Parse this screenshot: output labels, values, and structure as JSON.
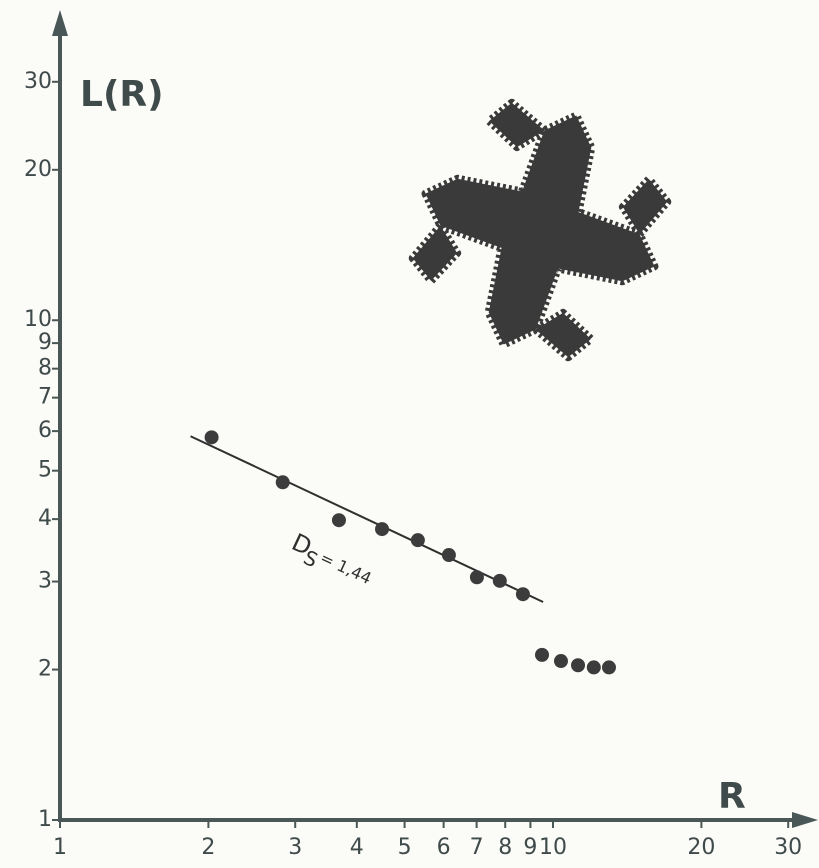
{
  "chart_data": {
    "type": "scatter",
    "x_label": "R",
    "y_label": "L(R)",
    "log_x": true,
    "log_y": true,
    "xlim": [
      1,
      34
    ],
    "ylim": [
      1,
      41
    ],
    "xticks": [
      1,
      2,
      3,
      4,
      5,
      6,
      7,
      8,
      9,
      10,
      20,
      30
    ],
    "yticks": [
      1,
      2,
      3,
      4,
      5,
      6,
      7,
      8,
      9,
      10,
      20,
      30
    ],
    "series": [
      {
        "color": "#3c3c3c",
        "x": [
          2.03,
          2.83,
          3.68,
          4.5,
          5.32,
          6.15,
          7.01,
          7.8,
          8.69,
          9.5,
          10.38,
          11.24,
          12.1,
          12.99
        ],
        "values": [
          5.83,
          4.74,
          3.98,
          3.82,
          3.63,
          3.39,
          3.06,
          3.01,
          2.83,
          2.14,
          2.08,
          2.04,
          2.02,
          2.02
        ]
      }
    ],
    "fit_line": {
      "color": "#2f2f2f",
      "x": [
        1.84,
        9.55
      ],
      "values": [
        5.86,
        2.73
      ]
    },
    "annotation": {
      "base": "D",
      "subscript": "S",
      "text": "= 1,44"
    }
  }
}
